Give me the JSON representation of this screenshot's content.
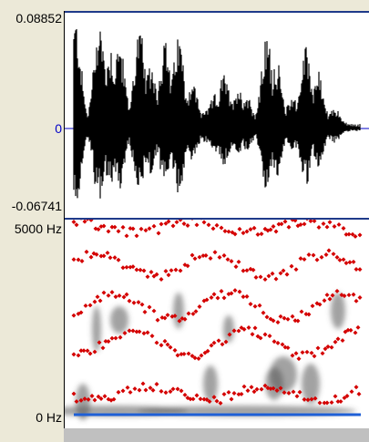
{
  "waveform": {
    "max_label": "0.08852",
    "zero_label": "0",
    "min_label": "-0.06741",
    "colors": {
      "trace": "#000000",
      "zero_line": "#0000C8",
      "border": "#1F3A8A"
    }
  },
  "spectrogram": {
    "max_label": "5000 Hz",
    "min_label": "0 Hz",
    "colors": {
      "formant": "#D40000",
      "pitch_line": "#1E5FD6"
    }
  }
}
